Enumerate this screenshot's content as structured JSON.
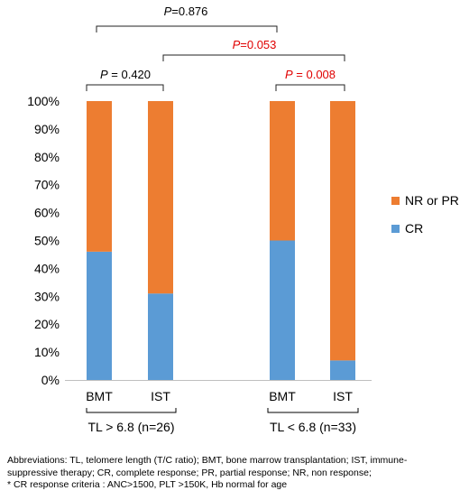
{
  "chart_data": {
    "type": "bar",
    "stacked": true,
    "percent": true,
    "categories": [
      "BMT",
      "IST",
      "BMT",
      "IST"
    ],
    "groups": [
      {
        "label": "TL > 6.8 (n=26)",
        "categories": [
          "BMT",
          "IST"
        ]
      },
      {
        "label": "TL < 6.8 (n=33)",
        "categories": [
          "BMT",
          "IST"
        ]
      }
    ],
    "series": [
      {
        "name": "CR",
        "values": [
          46,
          31,
          50,
          7
        ],
        "color": "#5b9bd5"
      },
      {
        "name": "NR or PR",
        "values": [
          54,
          69,
          50,
          93
        ],
        "color": "#ed7d31"
      }
    ],
    "yticks": [
      "0%",
      "10%",
      "20%",
      "30%",
      "40%",
      "50%",
      "60%",
      "70%",
      "80%",
      "90%",
      "100%"
    ],
    "ylim": [
      0,
      100
    ],
    "legend_position": "right",
    "comparisons": [
      {
        "between": [
          "TL > 6.8 BMT",
          "TL > 6.8 IST"
        ],
        "p_italic": "P",
        "p_value": " = 0.420",
        "color": "#000000"
      },
      {
        "between": [
          "TL < 6.8 BMT",
          "TL < 6.8 IST"
        ],
        "p_italic": "P",
        "p_value": " = 0.008",
        "color": "#e00000"
      },
      {
        "between": [
          "TL > 6.8 IST",
          "TL < 6.8 IST"
        ],
        "p_italic": "P",
        "p_value": "=0.053",
        "color": "#e00000"
      },
      {
        "between": [
          "TL > 6.8 BMT",
          "TL < 6.8 BMT"
        ],
        "p_italic": "P",
        "p_value": "=0.876",
        "color": "#000000"
      }
    ]
  },
  "footnote": {
    "line1": "Abbreviations: TL, telomere length (T/C ratio); BMT, bone marrow transplantation; IST, immune-",
    "line2": "suppressive therapy; CR, complete response; PR, partial response; NR, non response;",
    "line3": "* CR response criteria : ANC>1500, PLT >150K, Hb normal for age"
  }
}
